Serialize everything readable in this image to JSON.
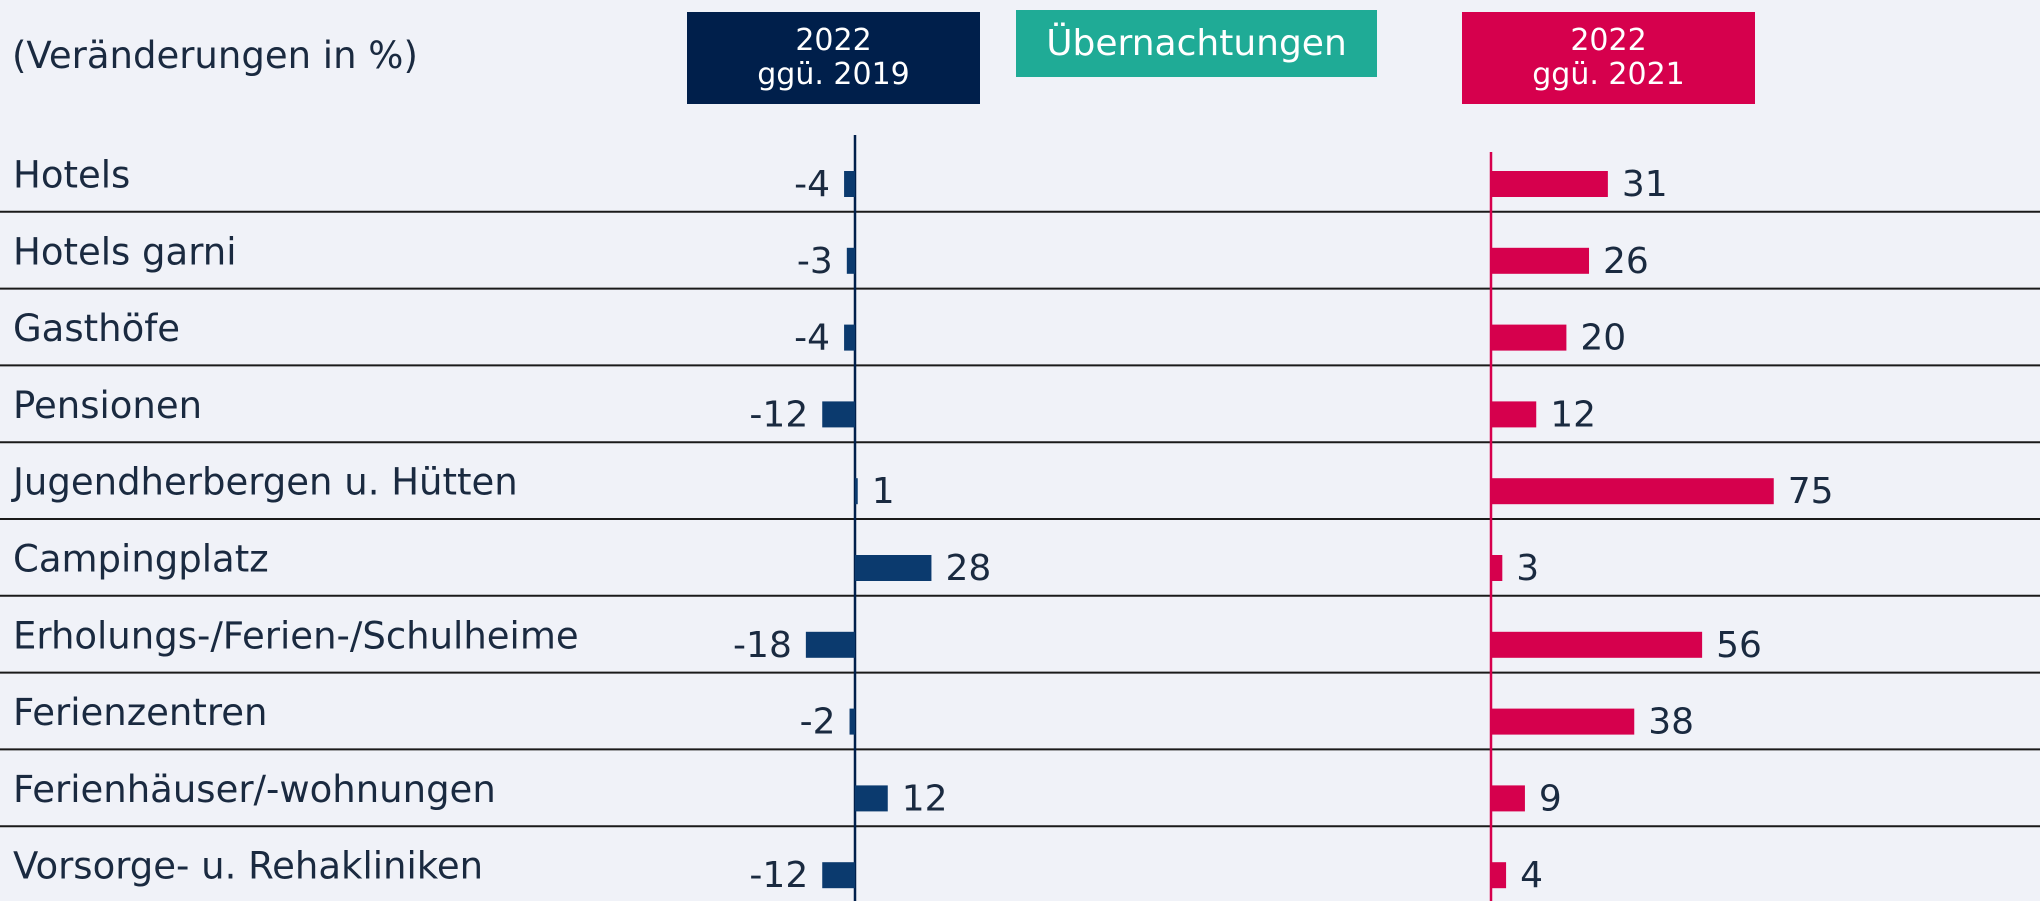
{
  "chart_data": {
    "type": "bar",
    "orientation": "horizontal",
    "title": "Übernachtungen",
    "subtitle": "(Veränderungen in %)",
    "categories": [
      "Hotels",
      "Hotels garni",
      "Gasthöfe",
      "Pensionen",
      "Jugendherbergen u. Hütten",
      "Campingplatz",
      "Erholungs-/Ferien-/Schulheime",
      "Ferienzentren",
      "Ferienhäuser/-wohnungen",
      "Vorsorge- u. Rehakliniken"
    ],
    "series": [
      {
        "name": "2022\nggü. 2019",
        "color": "#0b3a6e",
        "header_color": "#001f4b",
        "values": [
          -4,
          -3,
          -4,
          -12,
          1,
          28,
          -18,
          -2,
          12,
          -12
        ]
      },
      {
        "name": "2022\nggü. 2021",
        "color": "#d6004d",
        "header_color": "#d6004d",
        "values": [
          31,
          26,
          20,
          12,
          75,
          3,
          56,
          38,
          9,
          4
        ]
      }
    ],
    "title_color": "#1fab96"
  }
}
